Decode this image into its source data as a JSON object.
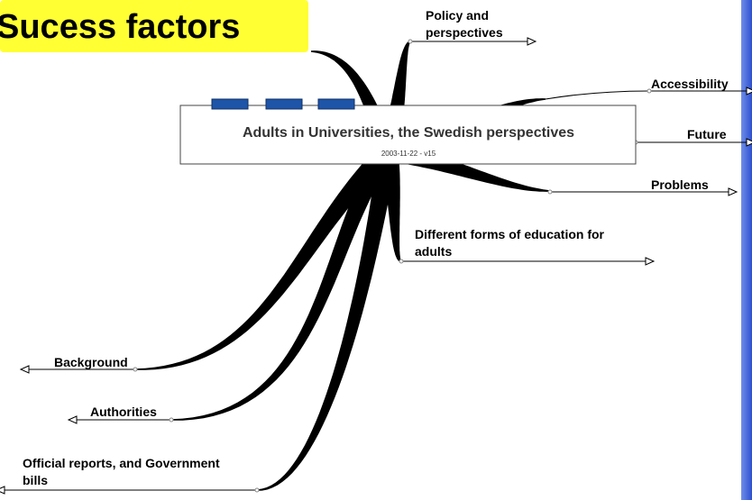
{
  "title": "Sucess factors",
  "central": {
    "title": "Adults in Universities, the Swedish perspectives",
    "subtitle": "2003-11-22 - v15"
  },
  "branches": [
    {
      "lines": [
        "Policy and",
        "perspectives"
      ]
    },
    {
      "lines": [
        "Accessibility"
      ]
    },
    {
      "lines": [
        "Future"
      ]
    },
    {
      "lines": [
        "Problems"
      ]
    },
    {
      "lines": [
        "Different forms of education for",
        "adults"
      ]
    },
    {
      "lines": [
        "Background"
      ]
    },
    {
      "lines": [
        "Authorities"
      ]
    },
    {
      "lines": [
        "Official reports, and Government",
        "bills"
      ]
    }
  ]
}
